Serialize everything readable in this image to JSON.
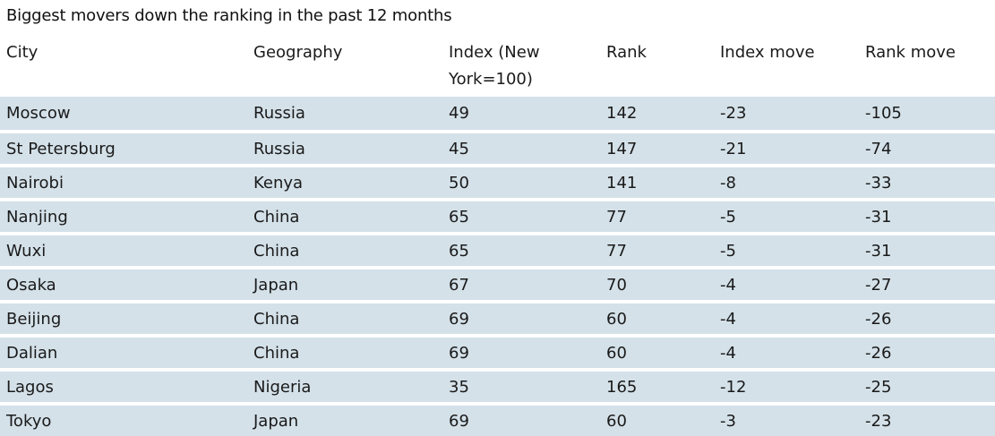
{
  "title": "Biggest movers down the ranking in the past 12 months",
  "columns": [
    "City",
    "Geography",
    "Index (New York=100)",
    "Rank",
    "Index move",
    "Rank move"
  ],
  "rows": [
    [
      "Moscow",
      "Russia",
      "49",
      "142",
      "-23",
      "-105"
    ],
    [
      "St Petersburg",
      "Russia",
      "45",
      "147",
      "-21",
      "-74"
    ],
    [
      "Nairobi",
      "Kenya",
      "50",
      "141",
      "-8",
      "-33"
    ],
    [
      "Nanjing",
      "China",
      "65",
      "77",
      "-5",
      "-31"
    ],
    [
      "Wuxi",
      "China",
      "65",
      "77",
      "-5",
      "-31"
    ],
    [
      "Osaka",
      "Japan",
      "67",
      "70",
      "-4",
      "-27"
    ],
    [
      "Beijing",
      "China",
      "69",
      "60",
      "-4",
      "-26"
    ],
    [
      "Dalian",
      "China",
      "69",
      "60",
      "-4",
      "-26"
    ],
    [
      "Lagos",
      "Nigeria",
      "35",
      "165",
      "-12",
      "-25"
    ],
    [
      "Tokyo",
      "Japan",
      "69",
      "60",
      "-3",
      "-23"
    ]
  ],
  "colors": {
    "row_background": "#d4e1e9",
    "text": "#1a1a1a"
  },
  "chart_data": {
    "type": "table",
    "title": "Biggest movers down the ranking in the past 12 months",
    "columns": [
      "City",
      "Geography",
      "Index (New York=100)",
      "Rank",
      "Index move",
      "Rank move"
    ],
    "rows": [
      {
        "city": "Moscow",
        "geography": "Russia",
        "index": 49,
        "rank": 142,
        "index_move": -23,
        "rank_move": -105
      },
      {
        "city": "St Petersburg",
        "geography": "Russia",
        "index": 45,
        "rank": 147,
        "index_move": -21,
        "rank_move": -74
      },
      {
        "city": "Nairobi",
        "geography": "Kenya",
        "index": 50,
        "rank": 141,
        "index_move": -8,
        "rank_move": -33
      },
      {
        "city": "Nanjing",
        "geography": "China",
        "index": 65,
        "rank": 77,
        "index_move": -5,
        "rank_move": -31
      },
      {
        "city": "Wuxi",
        "geography": "China",
        "index": 65,
        "rank": 77,
        "index_move": -5,
        "rank_move": -31
      },
      {
        "city": "Osaka",
        "geography": "Japan",
        "index": 67,
        "rank": 70,
        "index_move": -4,
        "rank_move": -27
      },
      {
        "city": "Beijing",
        "geography": "China",
        "index": 69,
        "rank": 60,
        "index_move": -4,
        "rank_move": -26
      },
      {
        "city": "Dalian",
        "geography": "China",
        "index": 69,
        "rank": 60,
        "index_move": -4,
        "rank_move": -26
      },
      {
        "city": "Lagos",
        "geography": "Nigeria",
        "index": 35,
        "rank": 165,
        "index_move": -12,
        "rank_move": -25
      },
      {
        "city": "Tokyo",
        "geography": "Japan",
        "index": 69,
        "rank": 60,
        "index_move": -3,
        "rank_move": -23
      }
    ]
  }
}
